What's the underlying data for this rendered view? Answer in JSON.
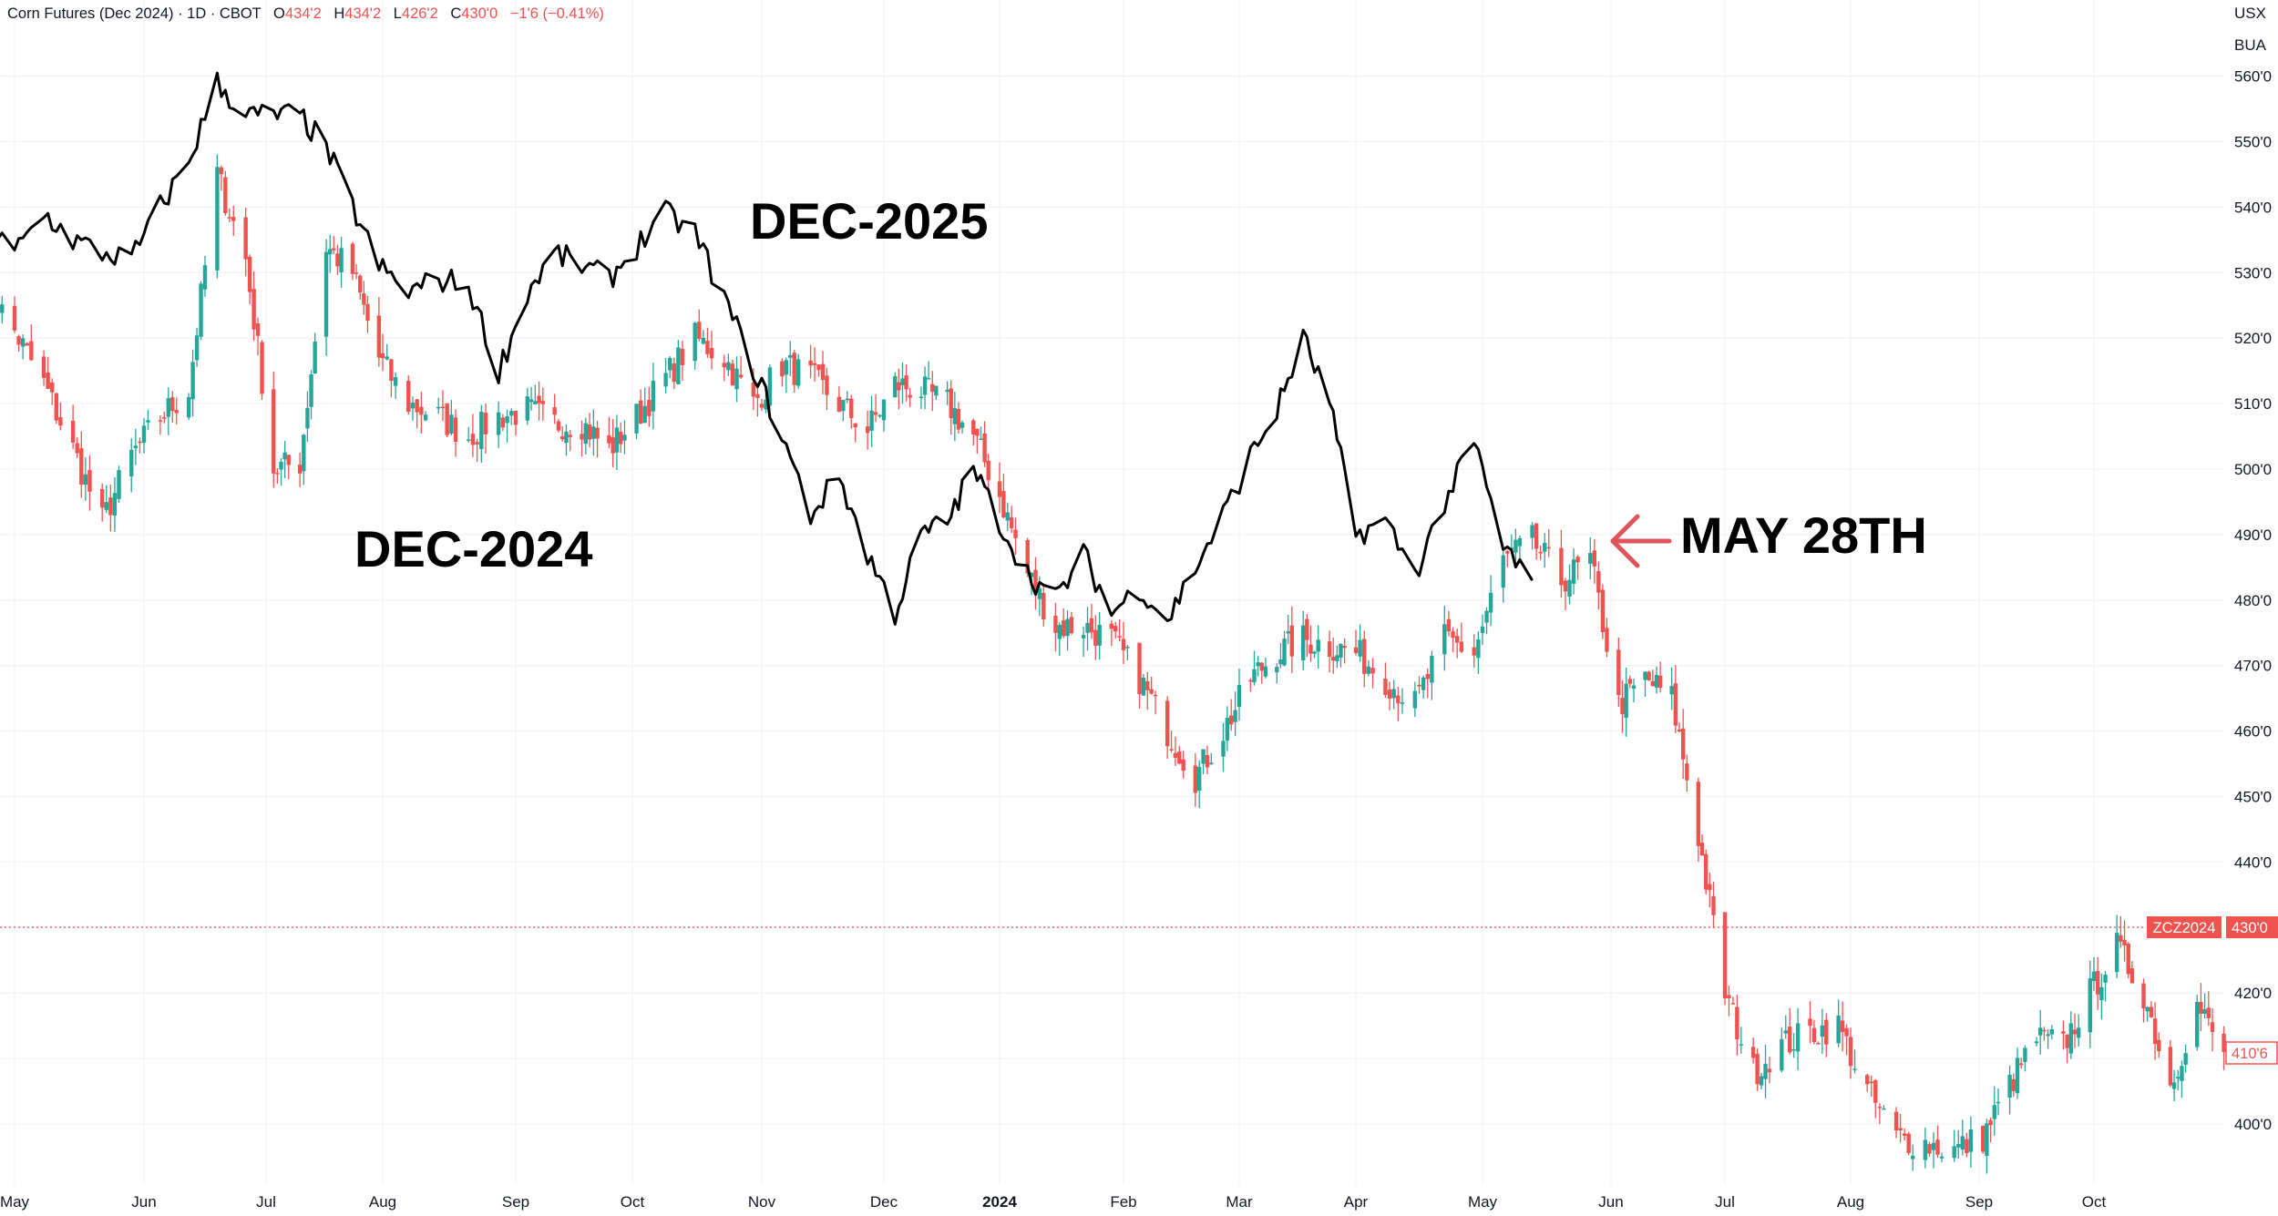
{
  "header": {
    "symbol_desc": "Corn Futures (Dec 2024) · 1D · CBOT",
    "open_label": "O",
    "open_value": "434'2",
    "high_label": "H",
    "high_value": "434'2",
    "low_label": "L",
    "low_value": "426'2",
    "close_label": "C",
    "close_value": "430'0",
    "change": "−1'6 (−0.41%)"
  },
  "axis": {
    "currency": "USX",
    "unit": "BUA",
    "price_tag_symbol": "ZCZ2024",
    "price_tag_value": "430'0",
    "second_tag_value": "410'6"
  },
  "colors": {
    "up": "#26a69a",
    "down": "#ef5350",
    "overlay_line": "#000000",
    "annotation_arrow": "#e0545b"
  },
  "annotations": {
    "dec2025": "DEC-2025",
    "dec2024": "DEC-2024",
    "may28": "MAY 28TH"
  },
  "chart_data": {
    "type": "line",
    "title": "Corn Futures (Dec 2024) · 1D · CBOT",
    "xlabel": "",
    "ylabel": "",
    "ylim": [
      393,
      565
    ],
    "y_ticks": [
      "400'0",
      "410'0",
      "420'0",
      "430'0",
      "440'0",
      "450'0",
      "460'0",
      "470'0",
      "480'0",
      "490'0",
      "500'0",
      "510'0",
      "520'0",
      "530'0",
      "540'0",
      "550'0",
      "560'0"
    ],
    "x_ticks": [
      "May",
      "Jun",
      "Jul",
      "Aug",
      "Sep",
      "Oct",
      "Nov",
      "Dec",
      "2024",
      "Feb",
      "Mar",
      "Apr",
      "May",
      "Jun",
      "Jul",
      "Aug",
      "Sep",
      "Oct"
    ],
    "x_tick_bold": "2024",
    "current_price": 430.0,
    "series": [
      {
        "name": "DEC-2024",
        "style": "candlestick",
        "points": [
          [
            "2023-04-24",
            528
          ],
          [
            "2023-05-01",
            521
          ],
          [
            "2023-05-08",
            513
          ],
          [
            "2023-05-15",
            503
          ],
          [
            "2023-05-22",
            492
          ],
          [
            "2023-05-29",
            502
          ],
          [
            "2023-06-05",
            508
          ],
          [
            "2023-06-12",
            512
          ],
          [
            "2023-06-19",
            545
          ],
          [
            "2023-06-26",
            532
          ],
          [
            "2023-07-03",
            500
          ],
          [
            "2023-07-10",
            501
          ],
          [
            "2023-07-17",
            534
          ],
          [
            "2023-07-24",
            530
          ],
          [
            "2023-07-31",
            517
          ],
          [
            "2023-08-07",
            510
          ],
          [
            "2023-08-14",
            508
          ],
          [
            "2023-08-21",
            505
          ],
          [
            "2023-08-28",
            508
          ],
          [
            "2023-09-04",
            509
          ],
          [
            "2023-09-11",
            507
          ],
          [
            "2023-09-18",
            507
          ],
          [
            "2023-09-25",
            503
          ],
          [
            "2023-10-02",
            508
          ],
          [
            "2023-10-09",
            514
          ],
          [
            "2023-10-16",
            520
          ],
          [
            "2023-10-23",
            517
          ],
          [
            "2023-10-30",
            510
          ],
          [
            "2023-11-06",
            516
          ],
          [
            "2023-11-13",
            514
          ],
          [
            "2023-11-20",
            510
          ],
          [
            "2023-11-27",
            506
          ],
          [
            "2023-12-04",
            513
          ],
          [
            "2023-12-11",
            512
          ],
          [
            "2023-12-18",
            510
          ],
          [
            "2023-12-25",
            505
          ],
          [
            "2024-01-01",
            496
          ],
          [
            "2024-01-08",
            484
          ],
          [
            "2024-01-15",
            476
          ],
          [
            "2024-01-22",
            476
          ],
          [
            "2024-01-29",
            474
          ],
          [
            "2024-02-05",
            468
          ],
          [
            "2024-02-12",
            460
          ],
          [
            "2024-02-19",
            453
          ],
          [
            "2024-02-26",
            460
          ],
          [
            "2024-03-04",
            468
          ],
          [
            "2024-03-11",
            472
          ],
          [
            "2024-03-18",
            474
          ],
          [
            "2024-03-25",
            473
          ],
          [
            "2024-04-01",
            472
          ],
          [
            "2024-04-08",
            468
          ],
          [
            "2024-04-15",
            464
          ],
          [
            "2024-04-22",
            474
          ],
          [
            "2024-04-29",
            472
          ],
          [
            "2024-05-06",
            486
          ],
          [
            "2024-05-13",
            489
          ],
          [
            "2024-05-20",
            483
          ],
          [
            "2024-05-27",
            486
          ],
          [
            "2024-06-03",
            464
          ],
          [
            "2024-06-10",
            468
          ],
          [
            "2024-06-17",
            465
          ],
          [
            "2024-06-24",
            444
          ],
          [
            "2024-07-01",
            420
          ],
          [
            "2024-07-08",
            408
          ],
          [
            "2024-07-15",
            412
          ],
          [
            "2024-07-22",
            414
          ],
          [
            "2024-07-29",
            415
          ],
          [
            "2024-08-05",
            405
          ],
          [
            "2024-08-12",
            398
          ],
          [
            "2024-08-19",
            397
          ],
          [
            "2024-08-26",
            396
          ],
          [
            "2024-09-02",
            398
          ],
          [
            "2024-09-09",
            406
          ],
          [
            "2024-09-16",
            413
          ],
          [
            "2024-09-23",
            412
          ],
          [
            "2024-09-30",
            420
          ],
          [
            "2024-10-07",
            427
          ],
          [
            "2024-10-14",
            420
          ],
          [
            "2024-10-21",
            406
          ],
          [
            "2024-10-28",
            418
          ],
          [
            "2024-11-04",
            411
          ]
        ]
      },
      {
        "name": "DEC-2025",
        "style": "line",
        "points": [
          [
            "2023-04-24",
            537
          ],
          [
            "2023-05-01",
            533
          ],
          [
            "2023-05-08",
            539
          ],
          [
            "2023-05-15",
            535
          ],
          [
            "2023-05-22",
            533
          ],
          [
            "2023-05-29",
            532
          ],
          [
            "2023-06-05",
            540
          ],
          [
            "2023-06-12",
            547
          ],
          [
            "2023-06-19",
            559
          ],
          [
            "2023-06-26",
            554
          ],
          [
            "2023-07-03",
            554
          ],
          [
            "2023-07-10",
            554
          ],
          [
            "2023-07-17",
            549
          ],
          [
            "2023-07-24",
            540
          ],
          [
            "2023-07-31",
            531
          ],
          [
            "2023-08-07",
            527
          ],
          [
            "2023-08-14",
            529
          ],
          [
            "2023-08-21",
            528
          ],
          [
            "2023-08-28",
            515
          ],
          [
            "2023-09-04",
            527
          ],
          [
            "2023-09-11",
            533
          ],
          [
            "2023-09-18",
            531
          ],
          [
            "2023-09-25",
            529
          ],
          [
            "2023-10-02",
            534
          ],
          [
            "2023-10-09",
            539
          ],
          [
            "2023-10-16",
            536
          ],
          [
            "2023-10-23",
            526
          ],
          [
            "2023-11-06",
            505
          ],
          [
            "2023-11-13",
            493
          ],
          [
            "2023-11-20",
            499
          ],
          [
            "2023-11-27",
            487
          ],
          [
            "2023-12-04",
            478
          ],
          [
            "2023-12-11",
            490
          ],
          [
            "2023-12-18",
            492
          ],
          [
            "2023-12-25",
            500
          ],
          [
            "2024-01-01",
            492
          ],
          [
            "2024-01-08",
            484
          ],
          [
            "2024-01-15",
            480
          ],
          [
            "2024-01-22",
            487
          ],
          [
            "2024-01-29",
            478
          ],
          [
            "2024-02-05",
            482
          ],
          [
            "2024-02-12",
            477
          ],
          [
            "2024-02-19",
            485
          ],
          [
            "2024-02-26",
            493
          ],
          [
            "2024-03-04",
            502
          ],
          [
            "2024-03-11",
            509
          ],
          [
            "2024-03-18",
            520
          ],
          [
            "2024-03-25",
            510
          ],
          [
            "2024-04-01",
            490
          ],
          [
            "2024-04-08",
            492
          ],
          [
            "2024-04-15",
            484
          ],
          [
            "2024-04-22",
            495
          ],
          [
            "2024-04-29",
            504
          ],
          [
            "2024-05-06",
            488
          ],
          [
            "2024-05-13",
            483
          ]
        ]
      }
    ]
  }
}
